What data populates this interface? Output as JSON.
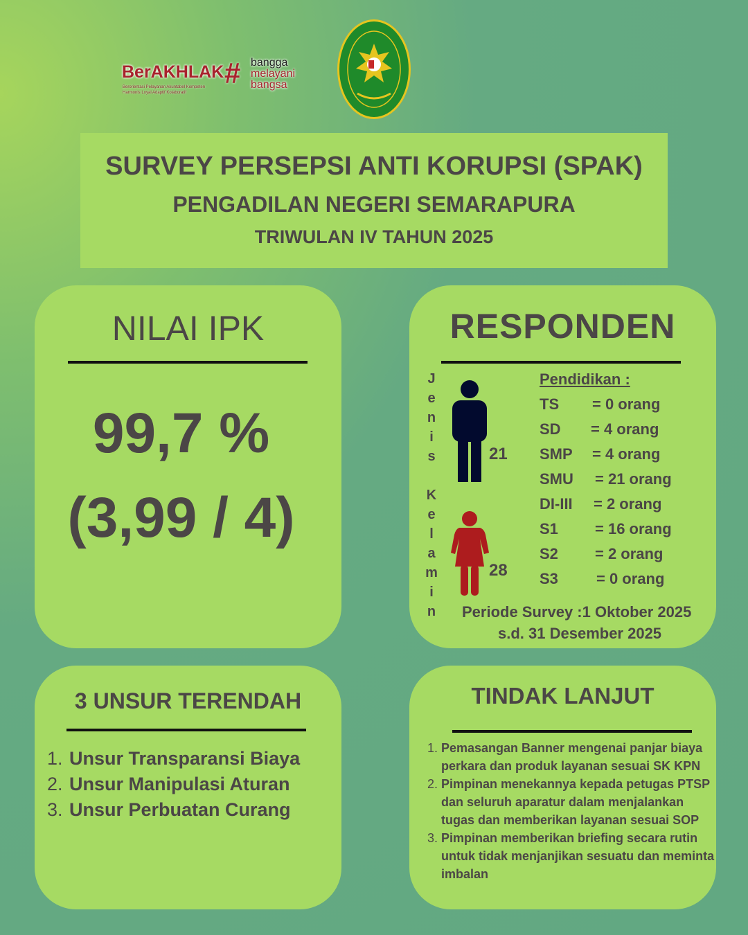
{
  "header": {
    "logo_berakhlak": {
      "brand": "BerAKHLAK",
      "tagline": "Berorientasi Pelayanan Akuntabel Kompeten Harmonis Loyal Adaptif Kolaboratif",
      "hashtag": [
        "bangga",
        "melayani",
        "bangsa"
      ]
    },
    "seal": {
      "text": "PENGADILAN NEGERI SEMARAPURA"
    }
  },
  "title": {
    "line1": "SURVEY PERSEPSI ANTI KORUPSI (SPAK)",
    "line2": "PENGADILAN NEGERI SEMARAPURA",
    "line3": "TRIWULAN IV TAHUN 2025"
  },
  "ipk": {
    "heading": "NILAI IPK",
    "percent": "99,7 %",
    "score": "(3,99 / 4)"
  },
  "responden": {
    "heading": "RESPONDEN",
    "gender_label": "Jenis Kelamin",
    "male_count": "21",
    "female_count": "28",
    "male_color": "#020a2e",
    "female_color": "#ad1c1e",
    "education_title": "Pendidikan :",
    "education": [
      {
        "level": "TS",
        "value": "= 0 orang"
      },
      {
        "level": "SD",
        "value": "= 4 orang"
      },
      {
        "level": "SMP",
        "value": "= 4 orang"
      },
      {
        "level": "SMU",
        "value": "= 21 orang"
      },
      {
        "level": "DI-III",
        "value": "=  2 orang"
      },
      {
        "level": "S1",
        "value": "= 16 orang"
      },
      {
        "level": "S2",
        "value": "= 2 orang"
      },
      {
        "level": "S3",
        "value": "= 0 orang"
      }
    ],
    "period_line1": "Periode Survey :1  Oktober 2025",
    "period_line2": "s.d. 31 Desember 2025"
  },
  "terendah": {
    "heading": "3 UNSUR TERENDAH",
    "items": [
      "Unsur Transparansi Biaya",
      "Unsur Manipulasi Aturan",
      "Unsur Perbuatan Curang"
    ]
  },
  "tindak": {
    "heading": "TINDAK LANJUT",
    "items": [
      "Pemasangan Banner mengenai panjar biaya perkara dan produk layanan sesuai SK KPN",
      "Pimpinan menekannya kepada petugas PTSP dan seluruh aparatur dalam menjalankan tugas dan memberikan layanan sesuai SOP",
      "Pimpinan memberikan briefing secara rutin untuk tidak menjanjikan sesuatu dan meminta imbalan"
    ]
  }
}
